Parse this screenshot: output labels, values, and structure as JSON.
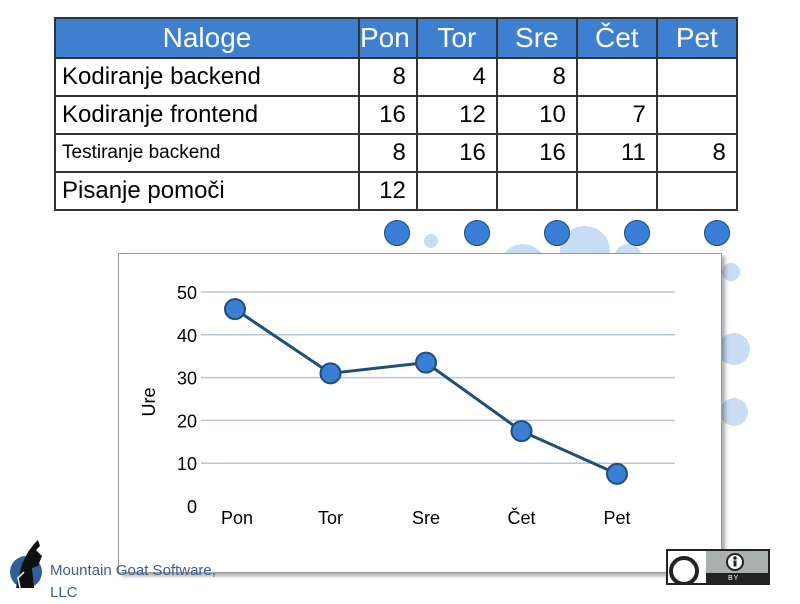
{
  "table": {
    "task_header": "Naloge",
    "days": [
      "Pon",
      "Tor",
      "Sre",
      "Čet",
      "Pet"
    ],
    "rows": [
      {
        "task": "Kodiranje backend",
        "values": [
          "8",
          "4",
          "8",
          "",
          ""
        ]
      },
      {
        "task": "Kodiranje frontend",
        "values": [
          "16",
          "12",
          "10",
          "7",
          ""
        ]
      },
      {
        "task": "Testiranje backend",
        "values": [
          "8",
          "16",
          "16",
          "11",
          "8"
        ]
      },
      {
        "task": "Pisanje pomoči",
        "values": [
          "12",
          "",
          "",
          "",
          ""
        ]
      }
    ]
  },
  "chart_data": {
    "type": "line",
    "categories": [
      "Pon",
      "Tor",
      "Sre",
      "Čet",
      "Pet"
    ],
    "series": [
      {
        "values": [
          46,
          31,
          33.5,
          17.5,
          7.5
        ]
      }
    ],
    "title": "",
    "xlabel": "",
    "ylabel": "Ure",
    "ylim": [
      0,
      50
    ],
    "yticks": [
      0,
      10,
      20,
      30,
      40,
      50
    ],
    "grid": true,
    "line_color": "#1f4e79",
    "marker_color": "#3a7fd5"
  },
  "footer": {
    "logo_text_line1": "Mountain Goat Software,",
    "logo_text_line2": "LLC",
    "license_label": "BY"
  },
  "colors": {
    "header_blue": "#3f7fd0",
    "deco_blue": "#3a7fd5",
    "deco_light": "#c8dcf4"
  }
}
